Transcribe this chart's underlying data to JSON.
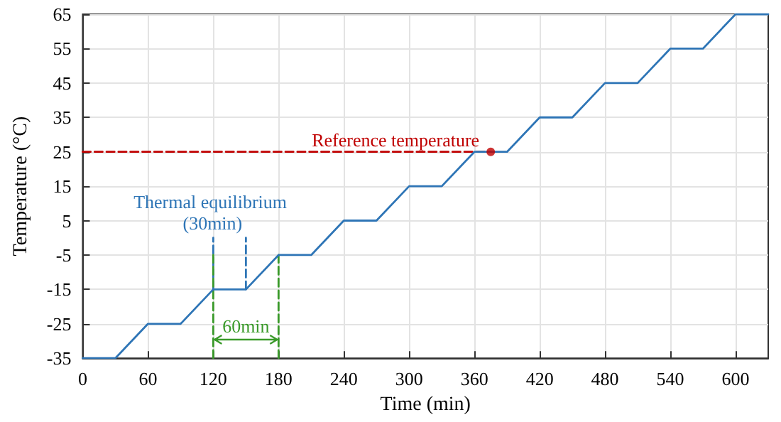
{
  "chart_data": {
    "type": "line",
    "xlabel": "Time (min)",
    "ylabel": "Temperature (°C)",
    "xlim": [
      0,
      630
    ],
    "ylim": [
      -35,
      65
    ],
    "xticks": [
      0,
      60,
      120,
      180,
      240,
      300,
      360,
      420,
      480,
      540,
      600
    ],
    "yticks": [
      -35,
      -25,
      -15,
      -5,
      5,
      15,
      25,
      35,
      45,
      55,
      65
    ],
    "grid": true,
    "marker": "none",
    "line_style": "solid",
    "x": [
      0,
      30,
      60,
      90,
      120,
      150,
      180,
      210,
      240,
      270,
      300,
      330,
      360,
      390,
      420,
      450,
      480,
      510,
      540,
      570,
      600,
      630
    ],
    "series": [
      {
        "color": "#2e75b6",
        "values": [
          -35,
          -35,
          -25,
          -25,
          -15,
          -15,
          -5,
          -5,
          5,
          5,
          15,
          15,
          25,
          25,
          35,
          35,
          45,
          45,
          55,
          55,
          65,
          65
        ]
      },
      {
        "name": "Reference temperature",
        "color": "#c00000",
        "line_style": "dashed",
        "x": [
          0,
          375
        ],
        "values": [
          25,
          25
        ]
      },
      {
        "type": "scatter",
        "color": "#c00000",
        "marker": "circle",
        "x": [
          375
        ],
        "values": [
          25
        ]
      },
      {
        "name": "Thermal equilibrium (30min)",
        "color": "#2e75b6",
        "line_style": "dashed",
        "x": [
          120,
          120
        ],
        "values": [
          -15,
          0
        ]
      },
      {
        "color": "#2e75b6",
        "line_style": "dashed",
        "x": [
          150,
          150
        ],
        "values": [
          -15,
          0
        ]
      },
      {
        "name": "60min",
        "color": "#3a9a2a",
        "line_style": "dashed",
        "x": [
          120,
          120
        ],
        "values": [
          -35,
          -5
        ]
      },
      {
        "color": "#3a9a2a",
        "line_style": "dashed",
        "x": [
          180,
          180
        ],
        "values": [
          -35,
          -5
        ]
      }
    ]
  }
}
